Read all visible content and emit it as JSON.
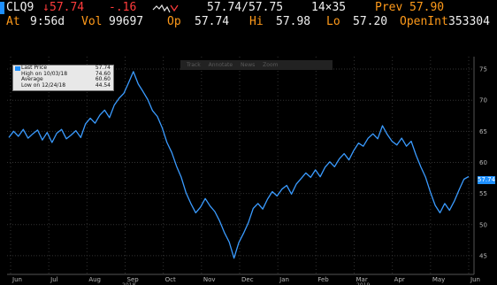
{
  "quote": {
    "ticker": "CLQ9",
    "arrow": "↓",
    "last": "57.74",
    "change": "-.16",
    "bid_ask": "57.74/57.75",
    "size": "14×35",
    "prev_label": "Prev",
    "prev_value": "57.90",
    "at_label": "At",
    "time": "9:56d",
    "vol_label": "Vol",
    "vol_value": "99697",
    "open_label": "Op",
    "open_value": "57.74",
    "hi_label": "Hi",
    "hi_value": "57.98",
    "lo_label": "Lo",
    "lo_value": "57.20",
    "oi_label": "OpenInt",
    "oi_value": "353304"
  },
  "legend": [
    {
      "label": "Last Price",
      "value": "57.74",
      "swatch": "#1e90ff"
    },
    {
      "label": "High on 10/03/18",
      "value": "74.60",
      "swatch": ""
    },
    {
      "label": "Average",
      "value": "60.60",
      "swatch": ""
    },
    {
      "label": "Low on 12/24/18",
      "value": "44.54",
      "swatch": ""
    }
  ],
  "toolbar": [
    "Track",
    "Annotate",
    "News",
    "Zoom"
  ],
  "colors": {
    "line": "#3a9bff",
    "accent": "#1e90ff",
    "grid": "#333333"
  },
  "chart_data": {
    "type": "line",
    "title": "",
    "xlabel": "",
    "ylabel": "",
    "ylim": [
      42,
      77
    ],
    "yticks": [
      45,
      50,
      55,
      60,
      65,
      70,
      75
    ],
    "month_labels": [
      "Jun",
      "Jul",
      "Aug",
      "Sep",
      "Oct",
      "Nov",
      "Dec",
      "Jan",
      "Feb",
      "Mar",
      "Apr",
      "May",
      "Jun"
    ],
    "year_labels": [
      "2018",
      "2019"
    ],
    "last_value_label": "57.74",
    "series": [
      {
        "values": [
          64.0,
          65.0,
          64.2,
          65.3,
          63.9,
          64.6,
          65.2,
          63.6,
          64.8,
          63.2,
          64.7,
          65.3,
          63.8,
          64.4,
          65.1,
          64.0,
          66.2,
          67.1,
          66.3,
          67.6,
          68.4,
          67.2,
          69.2,
          70.3,
          71.1,
          72.8,
          74.6,
          72.6,
          71.4,
          70.1,
          68.3,
          67.4,
          65.6,
          63.2,
          61.6,
          59.4,
          57.6,
          55.1,
          53.4,
          51.9,
          52.8,
          54.2,
          53.0,
          52.1,
          50.6,
          48.7,
          47.2,
          44.6,
          47.1,
          48.6,
          50.3,
          52.6,
          53.4,
          52.5,
          54.1,
          55.3,
          54.6,
          55.7,
          56.3,
          54.9,
          56.5,
          57.4,
          58.3,
          57.6,
          58.8,
          57.7,
          59.2,
          60.1,
          59.3,
          60.6,
          61.4,
          60.4,
          61.9,
          63.1,
          62.6,
          63.9,
          64.6,
          63.8,
          65.9,
          64.5,
          63.4,
          62.8,
          63.9,
          62.6,
          63.4,
          61.2,
          59.3,
          57.6,
          55.2,
          53.1,
          51.9,
          53.4,
          52.3,
          53.8,
          55.6,
          57.3,
          57.74
        ]
      }
    ]
  }
}
